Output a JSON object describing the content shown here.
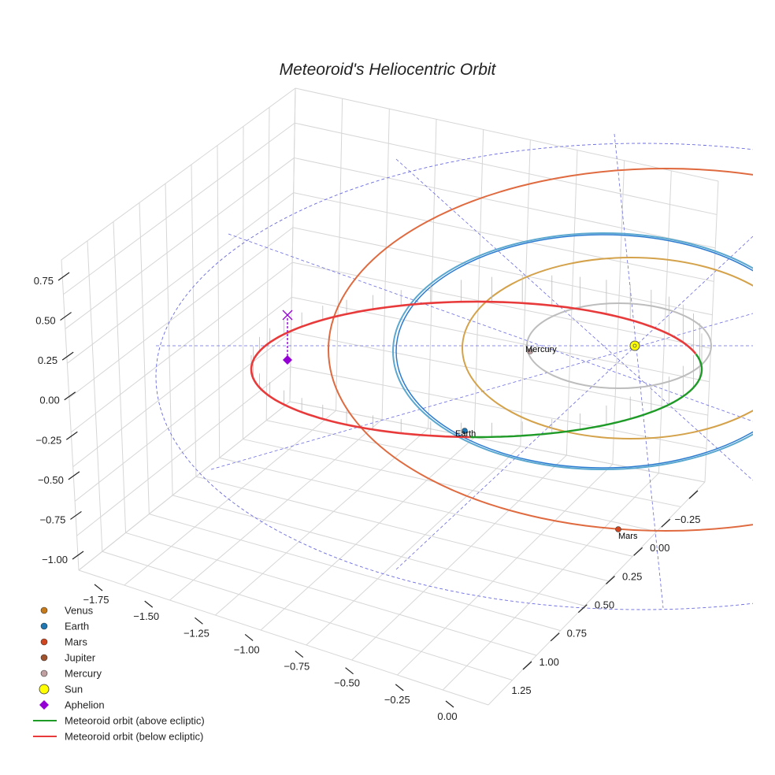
{
  "chart_data": {
    "type": "3d-line",
    "title": "Meteoroid's Heliocentric Orbit",
    "axes": {
      "x": {
        "ticks": [
          "−1.75",
          "−1.50",
          "−1.25",
          "−1.00",
          "−0.75",
          "−0.50",
          "−0.25",
          "0.00"
        ]
      },
      "y": {
        "ticks": [
          "−0.25",
          "0.00",
          "0.25",
          "0.50",
          "0.75",
          "1.00",
          "1.25"
        ]
      },
      "z": {
        "ticks": [
          "0.75",
          "0.50",
          "0.25",
          "0.00",
          "−0.25",
          "−0.50",
          "−0.75",
          "−1.00"
        ]
      }
    },
    "planet_labels": [
      {
        "name": "Mercury"
      },
      {
        "name": "Earth"
      },
      {
        "name": "Mars"
      }
    ],
    "orbits": [
      {
        "name": "Mercury",
        "color": "#bdbdbd"
      },
      {
        "name": "Venus",
        "color": "#d4a24a"
      },
      {
        "name": "Earth",
        "color": "#2b7bd0"
      },
      {
        "name": "Mars",
        "color": "#e06a3f"
      },
      {
        "name": "Jupiter",
        "color": "#6a6ae0"
      }
    ],
    "meteoroid": {
      "above_color": "#1e9a27",
      "below_color": "#e83a3a"
    },
    "legend": [
      {
        "label": "Venus",
        "marker": "circle",
        "color": "#c77a1a"
      },
      {
        "label": "Earth",
        "marker": "circle",
        "color": "#1f77b4"
      },
      {
        "label": "Mars",
        "marker": "circle",
        "color": "#d2461f"
      },
      {
        "label": "Jupiter",
        "marker": "circle",
        "color": "#a0522d"
      },
      {
        "label": "Mercury",
        "marker": "circle",
        "color": "#c0a0a0"
      },
      {
        "label": "Sun",
        "marker": "sun",
        "color": "#ffff00"
      },
      {
        "label": "Aphelion",
        "marker": "diamond",
        "color": "#9400d3"
      },
      {
        "label": "Meteoroid orbit (above ecliptic)",
        "marker": "line",
        "color": "#1e9a27"
      },
      {
        "label": "Meteoroid orbit (below ecliptic)",
        "marker": "line",
        "color": "#e83a3a"
      }
    ]
  }
}
